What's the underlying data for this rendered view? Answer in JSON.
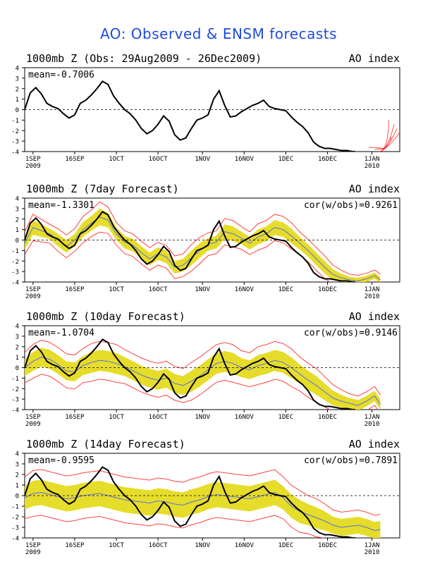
{
  "title": "AO: Observed & ENSM forecasts",
  "colors": {
    "obs": "#000000",
    "ens_mean": "#5a6ee0",
    "ens_spread": "#e6dc2a",
    "ens_members": "#ff2a2a",
    "title": "#1f4bd8"
  },
  "chart_data": [
    {
      "type": "line",
      "title": "1000mb Z (Obs: 29Aug2009 - 26Dec2009)",
      "right_label": "AO index",
      "stats": "mean=-0.7006",
      "ylim": [
        -4,
        4
      ],
      "yticks": [
        -4,
        -3,
        -2,
        -1,
        0,
        1,
        2,
        3,
        4
      ],
      "x_ticklabels": [
        "1SEP\n2009",
        "16SEP",
        "1OCT",
        "16OCT",
        "1NOV",
        "16NOV",
        "1DEC",
        "16DEC",
        "1JAN\n2010"
      ],
      "xticks_day": [
        3,
        18,
        33,
        48,
        64,
        79,
        94,
        109,
        125
      ],
      "xlim_day": [
        0,
        135
      ],
      "obs_series": {
        "name": "",
        "days": [
          0,
          2,
          4,
          6,
          8,
          10,
          12,
          14,
          16,
          18,
          20,
          22,
          24,
          26,
          28,
          30,
          32,
          34,
          36,
          38,
          40,
          42,
          44,
          46,
          48,
          50,
          52,
          54,
          56,
          58,
          60,
          62,
          64,
          66,
          68,
          70,
          72,
          74,
          76,
          78,
          80,
          82,
          84,
          86,
          88,
          90,
          92,
          94,
          96,
          98,
          100,
          102,
          104,
          106,
          108,
          110,
          112,
          114,
          116,
          118,
          119
        ],
        "values": [
          0.0,
          1.6,
          2.1,
          1.5,
          0.6,
          0.3,
          0.1,
          -0.4,
          -0.8,
          -0.5,
          0.6,
          0.9,
          1.4,
          2.0,
          2.7,
          2.4,
          1.3,
          0.6,
          0.0,
          -0.4,
          -1.0,
          -1.8,
          -2.3,
          -2.0,
          -1.4,
          -0.6,
          -1.1,
          -2.4,
          -2.9,
          -2.7,
          -1.8,
          -1.0,
          -0.8,
          -0.5,
          1.0,
          1.8,
          0.4,
          -0.7,
          -0.6,
          -0.2,
          0.1,
          0.4,
          0.6,
          0.9,
          0.3,
          0.1,
          0.0,
          -0.1,
          -0.7,
          -1.2,
          -1.6,
          -2.2,
          -3.1,
          -3.5,
          -3.7,
          -3.7,
          -3.8,
          -3.9,
          -3.9,
          -4.0,
          -4.0
        ]
      },
      "ens_mean": null,
      "members": "late-period forecast plume only"
    },
    {
      "type": "line",
      "title": "1000mb Z (7day Forecast)",
      "right_label": "AO index",
      "stats": "mean=-1.3301",
      "cor": "cor(w/obs)=0.9261",
      "ylim": [
        -4,
        4
      ],
      "yticks": [
        -4,
        -3,
        -2,
        -1,
        0,
        1,
        2,
        3,
        4
      ],
      "x_ticklabels": [
        "1SEP\n2009",
        "16SEP",
        "1OCT",
        "16OCT",
        "1NOV",
        "16NOV",
        "1DEC",
        "16DEC",
        "1JAN\n2010"
      ],
      "xticks_day": [
        3,
        18,
        33,
        48,
        64,
        79,
        94,
        109,
        125
      ],
      "xlim_day": [
        0,
        135
      ],
      "mean_days": [
        0,
        3,
        6,
        9,
        12,
        15,
        18,
        21,
        24,
        27,
        30,
        33,
        36,
        39,
        42,
        45,
        48,
        51,
        54,
        57,
        60,
        63,
        66,
        69,
        72,
        75,
        78,
        81,
        84,
        87,
        90,
        93,
        96,
        99,
        102,
        105,
        108,
        111,
        114,
        117,
        120,
        123,
        126,
        128
      ],
      "mean_values": [
        -0.3,
        1.2,
        0.9,
        0.6,
        0.0,
        -0.6,
        0.0,
        1.0,
        1.6,
        2.2,
        1.9,
        0.6,
        -0.2,
        -0.5,
        -1.2,
        -1.8,
        -1.3,
        -1.6,
        -2.6,
        -2.4,
        -1.7,
        -1.0,
        -0.4,
        -0.2,
        0.8,
        0.6,
        0.2,
        -0.3,
        0.3,
        0.6,
        1.2,
        1.0,
        0.4,
        -0.3,
        -1.0,
        -1.8,
        -2.6,
        -3.3,
        -3.6,
        -3.8,
        -3.9,
        -3.7,
        -3.4,
        -3.8
      ],
      "spread": [
        0.6,
        0.7,
        0.6,
        0.5,
        0.6,
        0.6,
        0.6,
        0.7,
        0.7,
        0.8,
        0.7,
        0.6,
        0.6,
        0.6,
        0.6,
        0.6,
        0.6,
        0.6,
        0.6,
        0.6,
        0.7,
        0.7,
        0.6,
        0.6,
        0.7,
        0.7,
        0.6,
        0.6,
        0.7,
        0.7,
        0.7,
        0.7,
        0.7,
        0.6,
        0.6,
        0.6,
        0.6,
        0.5,
        0.4,
        0.3,
        0.3,
        0.3,
        0.3,
        0.3
      ]
    },
    {
      "type": "line",
      "title": "1000mb Z (10day Forecast)",
      "right_label": "AO index",
      "stats": "mean=-1.0704",
      "cor": "cor(w/obs)=0.9146",
      "ylim": [
        -4,
        4
      ],
      "yticks": [
        -4,
        -3,
        -2,
        -1,
        0,
        1,
        2,
        3,
        4
      ],
      "x_ticklabels": [
        "1SEP\n2009",
        "16SEP",
        "1OCT",
        "16OCT",
        "1NOV",
        "16NOV",
        "1DEC",
        "16DEC",
        "1JAN\n2010"
      ],
      "xticks_day": [
        3,
        18,
        33,
        48,
        64,
        79,
        94,
        109,
        125
      ],
      "xlim_day": [
        0,
        135
      ],
      "mean_days": [
        0,
        3,
        6,
        9,
        12,
        15,
        18,
        21,
        24,
        27,
        30,
        33,
        36,
        39,
        42,
        45,
        48,
        51,
        54,
        57,
        60,
        63,
        66,
        69,
        72,
        75,
        78,
        81,
        84,
        87,
        90,
        93,
        96,
        99,
        102,
        105,
        108,
        111,
        114,
        117,
        120,
        123,
        126,
        128
      ],
      "mean_values": [
        0.0,
        0.6,
        1.0,
        0.8,
        0.3,
        -0.3,
        -0.4,
        0.2,
        0.5,
        0.7,
        0.6,
        0.4,
        0.1,
        -0.3,
        -0.7,
        -1.0,
        -1.2,
        -1.0,
        -1.5,
        -1.7,
        -1.3,
        -0.8,
        -0.2,
        0.4,
        0.6,
        0.4,
        0.0,
        -0.2,
        0.2,
        0.4,
        0.7,
        0.5,
        0.0,
        -0.6,
        -1.2,
        -1.7,
        -2.3,
        -2.9,
        -3.2,
        -3.4,
        -3.6,
        -3.2,
        -2.7,
        -3.5
      ],
      "spread": [
        0.8,
        0.9,
        0.9,
        0.9,
        0.9,
        0.9,
        0.9,
        0.9,
        1.0,
        1.0,
        1.0,
        1.0,
        0.9,
        0.9,
        0.9,
        0.9,
        0.9,
        0.9,
        0.9,
        0.9,
        1.0,
        1.0,
        1.0,
        1.0,
        1.0,
        1.0,
        0.9,
        0.9,
        1.0,
        1.0,
        1.0,
        1.0,
        1.0,
        0.9,
        0.9,
        0.9,
        0.8,
        0.7,
        0.6,
        0.5,
        0.5,
        0.5,
        0.5,
        0.5
      ]
    },
    {
      "type": "line",
      "title": "1000mb Z (14day Forecast)",
      "right_label": "AO index",
      "stats": "mean=-0.9595",
      "cor": "cor(w/obs)=0.7891",
      "ylim": [
        -4,
        4
      ],
      "yticks": [
        -4,
        -3,
        -2,
        -1,
        0,
        1,
        2,
        3,
        4
      ],
      "x_ticklabels": [
        "1SEP\n2009",
        "16SEP",
        "1OCT",
        "16OCT",
        "1NOV",
        "16NOV",
        "1DEC",
        "16DEC",
        "1JAN\n2010"
      ],
      "xticks_day": [
        3,
        18,
        33,
        48,
        64,
        79,
        94,
        109,
        125
      ],
      "xlim_day": [
        0,
        135
      ],
      "mean_days": [
        0,
        3,
        6,
        9,
        12,
        15,
        18,
        21,
        24,
        27,
        30,
        33,
        36,
        39,
        42,
        45,
        48,
        51,
        54,
        57,
        60,
        63,
        66,
        69,
        72,
        75,
        78,
        81,
        84,
        87,
        90,
        93,
        96,
        99,
        102,
        105,
        108,
        111,
        114,
        117,
        120,
        123,
        126,
        128
      ],
      "mean_values": [
        -0.2,
        0.2,
        0.3,
        0.1,
        -0.1,
        -0.3,
        -0.2,
        0.0,
        0.1,
        0.2,
        0.0,
        -0.2,
        -0.4,
        -0.5,
        -0.6,
        -0.7,
        -0.5,
        -0.6,
        -0.8,
        -0.9,
        -0.6,
        -0.4,
        -0.1,
        0.1,
        0.0,
        -0.1,
        -0.2,
        -0.3,
        -0.1,
        0.1,
        0.3,
        -0.2,
        -1.0,
        -1.5,
        -1.8,
        -2.1,
        -2.4,
        -2.8,
        -3.0,
        -2.9,
        -2.8,
        -3.0,
        -3.3,
        -3.2
      ],
      "spread": [
        1.1,
        1.2,
        1.2,
        1.2,
        1.2,
        1.2,
        1.2,
        1.2,
        1.2,
        1.2,
        1.2,
        1.2,
        1.2,
        1.2,
        1.2,
        1.2,
        1.2,
        1.2,
        1.2,
        1.2,
        1.2,
        1.2,
        1.2,
        1.2,
        1.2,
        1.2,
        1.2,
        1.2,
        1.2,
        1.2,
        1.2,
        1.1,
        1.1,
        1.1,
        1.0,
        1.0,
        0.9,
        0.8,
        0.8,
        0.8,
        0.8,
        0.8,
        0.8,
        0.8
      ]
    }
  ]
}
